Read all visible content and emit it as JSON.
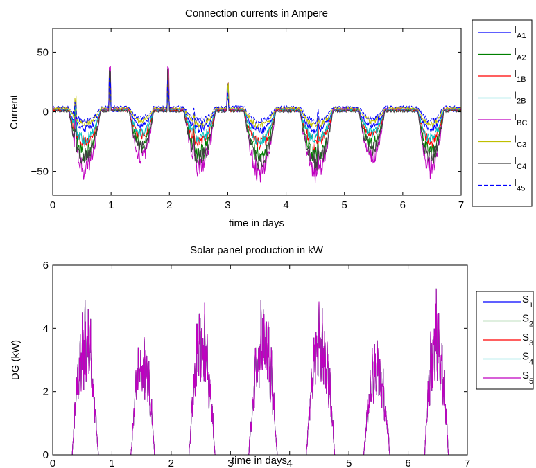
{
  "chart_data": [
    {
      "type": "line",
      "title": "Connection currents in Ampere",
      "xlabel": "time in days",
      "ylabel": "Current",
      "xlim": [
        0,
        7
      ],
      "ylim": [
        -70,
        70
      ],
      "xticks": [
        "0",
        "1",
        "2",
        "3",
        "4",
        "5",
        "6",
        "7"
      ],
      "yticks": [
        "−50",
        "0",
        "50"
      ],
      "legend_position": "outside-right",
      "series": [
        {
          "name": "I",
          "sub": "A1",
          "color": "#0000ff",
          "dash": false,
          "amp": 16,
          "base": 1.0,
          "seed": 1
        },
        {
          "name": "I",
          "sub": "A2",
          "color": "#008000",
          "dash": false,
          "amp": 38,
          "base": 1.5,
          "seed": 2
        },
        {
          "name": "I",
          "sub": "1B",
          "color": "#ff0000",
          "dash": false,
          "amp": 28,
          "base": 1.2,
          "seed": 3
        },
        {
          "name": "I",
          "sub": "2B",
          "color": "#00bfbf",
          "dash": false,
          "amp": 26,
          "base": 2.0,
          "seed": 4
        },
        {
          "name": "I",
          "sub": "BC",
          "color": "#bf00bf",
          "dash": false,
          "amp": 52,
          "base": 2.5,
          "seed": 5
        },
        {
          "name": "I",
          "sub": "C3",
          "color": "#bfbf00",
          "dash": false,
          "amp": 14,
          "base": 3.0,
          "seed": 6
        },
        {
          "name": "I",
          "sub": "C4",
          "color": "#404040",
          "dash": false,
          "amp": 42,
          "base": 0.5,
          "seed": 7
        },
        {
          "name": "I",
          "sub": "45",
          "color": "#0000ff",
          "dash": true,
          "amp": 12,
          "base": 4.0,
          "seed": 8
        }
      ],
      "days": [
        {
          "peak": 0.55,
          "width": 0.22,
          "scale": 0.95
        },
        {
          "peak": 1.52,
          "width": 0.17,
          "scale": 0.75
        },
        {
          "peak": 2.52,
          "width": 0.22,
          "scale": 0.95
        },
        {
          "peak": 3.55,
          "width": 0.22,
          "scale": 1.0
        },
        {
          "peak": 4.52,
          "width": 0.23,
          "scale": 1.0
        },
        {
          "peak": 5.47,
          "width": 0.18,
          "scale": 0.75
        },
        {
          "peak": 6.48,
          "width": 0.18,
          "scale": 0.95
        }
      ],
      "spikes": [
        {
          "x": 0.39,
          "y": 23
        },
        {
          "x": 0.98,
          "y": 37
        },
        {
          "x": 1.98,
          "y": 37
        },
        {
          "x": 3.0,
          "y": 24
        },
        {
          "x": 2.42,
          "y": 15
        },
        {
          "x": 4.55,
          "y": 12
        }
      ]
    },
    {
      "type": "line",
      "title": "Solar panel production in kW",
      "xlabel": "time in days",
      "ylabel": "DG (kW)",
      "xlim": [
        0,
        7
      ],
      "ylim": [
        0,
        6
      ],
      "xticks": [
        "0",
        "1",
        "2",
        "3",
        "4",
        "5",
        "6",
        "7"
      ],
      "yticks": [
        "0",
        "2",
        "4",
        "6"
      ],
      "legend_position": "outside-right",
      "series": [
        {
          "name": "S",
          "sub": "1",
          "color": "#0000ff"
        },
        {
          "name": "S",
          "sub": "2",
          "color": "#008000"
        },
        {
          "name": "S",
          "sub": "3",
          "color": "#ff0000"
        },
        {
          "name": "S",
          "sub": "4",
          "color": "#00bfbf"
        },
        {
          "name": "S",
          "sub": "5",
          "color": "#bf00bf"
        }
      ],
      "days": [
        {
          "peak": 0.55,
          "width": 0.22,
          "max": 5.2
        },
        {
          "peak": 1.52,
          "width": 0.2,
          "max": 4.4
        },
        {
          "peak": 2.52,
          "width": 0.22,
          "max": 5.2
        },
        {
          "peak": 3.55,
          "width": 0.24,
          "max": 5.25
        },
        {
          "peak": 4.52,
          "width": 0.24,
          "max": 5.3
        },
        {
          "peak": 5.47,
          "width": 0.22,
          "max": 3.9
        },
        {
          "peak": 6.48,
          "width": 0.2,
          "max": 5.4
        }
      ]
    }
  ]
}
